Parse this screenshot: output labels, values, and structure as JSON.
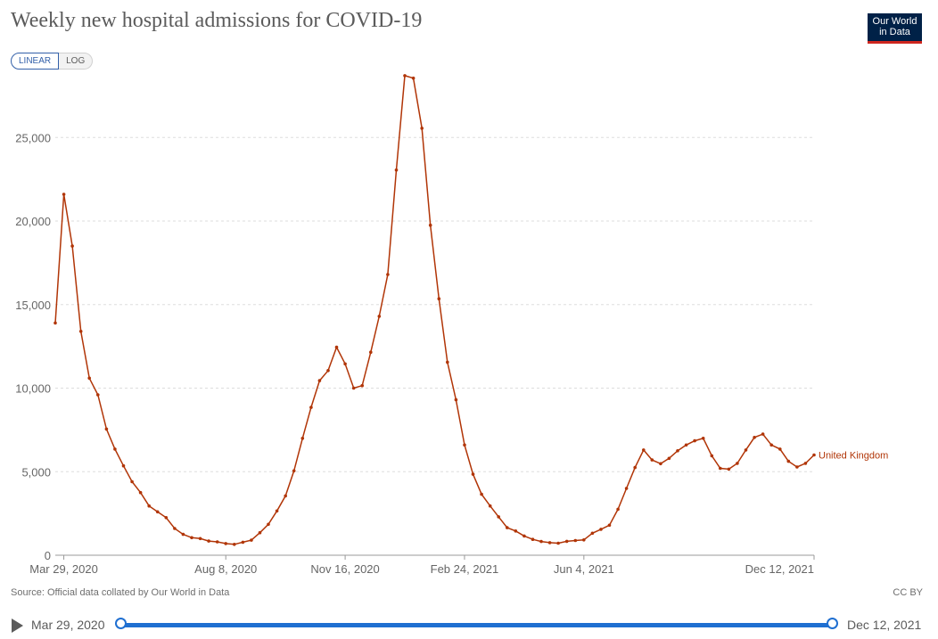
{
  "header": {
    "title": "Weekly new hospital admissions for COVID-19",
    "logo_line1": "Our World",
    "logo_line2": "in Data"
  },
  "controls": {
    "linear_label": "LINEAR",
    "log_label": "LOG",
    "active": "LINEAR"
  },
  "footer": {
    "source": "Source: Official data collated by Our World in Data",
    "license": "CC BY"
  },
  "timeline": {
    "start_label": "Mar 29, 2020",
    "end_label": "Dec 12, 2021"
  },
  "colors": {
    "series": "#b13507",
    "grid": "#dddddd",
    "slider": "#1f6fd1"
  },
  "chart_data": {
    "type": "line",
    "title": "Weekly new hospital admissions for COVID-19",
    "xlabel": "",
    "ylabel": "",
    "ylim": [
      0,
      28000
    ],
    "y_ticks": [
      0,
      5000,
      10000,
      15000,
      20000,
      25000
    ],
    "y_tick_labels": [
      "0",
      "5,000",
      "10,000",
      "15,000",
      "20,000",
      "25,000"
    ],
    "x_tick_labels": [
      "Mar 29, 2020",
      "Aug 8, 2020",
      "Nov 16, 2020",
      "Feb 24, 2021",
      "Jun 4, 2021",
      "Dec 12, 2021"
    ],
    "x_tick_index": [
      1,
      20,
      34,
      48,
      62,
      89
    ],
    "grid": true,
    "series": [
      {
        "name": "United Kingdom",
        "values": [
          13900,
          21600,
          18500,
          13400,
          10600,
          9600,
          7550,
          6350,
          5350,
          4400,
          3750,
          2950,
          2600,
          2250,
          1600,
          1250,
          1050,
          1000,
          850,
          800,
          700,
          650,
          780,
          900,
          1350,
          1850,
          2650,
          3550,
          5050,
          7000,
          8850,
          10450,
          11050,
          12450,
          11450,
          10000,
          10150,
          12150,
          14300,
          16800,
          23050,
          28700,
          28550,
          25550,
          19750,
          15350,
          11550,
          9300,
          6600,
          4850,
          3650,
          2950,
          2300,
          1650,
          1450,
          1150,
          950,
          820,
          750,
          720,
          830,
          880,
          920,
          1320,
          1550,
          1800,
          2750,
          4000,
          5250,
          6300,
          5700,
          5480,
          5800,
          6250,
          6600,
          6850,
          7000,
          5950,
          5200,
          5150,
          5500,
          6300,
          7050,
          7250,
          6600,
          6350,
          5620,
          5280,
          5500,
          6000
        ]
      }
    ]
  }
}
